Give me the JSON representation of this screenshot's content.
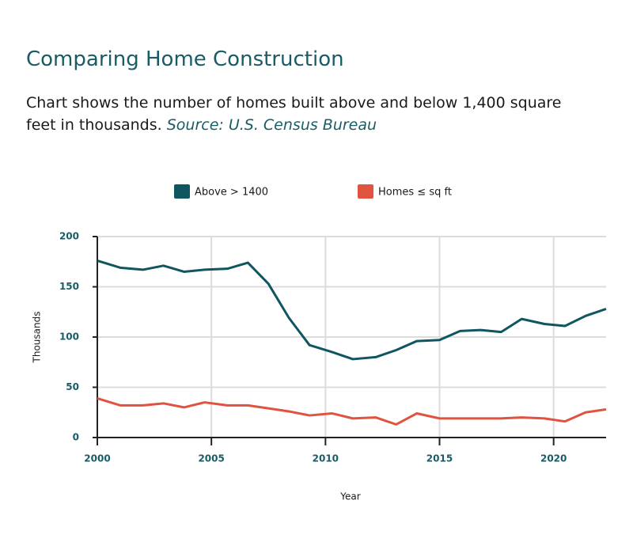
{
  "chart_data": {
    "type": "line",
    "title": "Comparing Home Construction",
    "subtitle": "Chart shows the number of homes built above and below 1,400 square feet in thousands.",
    "source": "Source: U.S. Census Bureau",
    "x_label": "Year",
    "y_label": "Thousands",
    "x": [
      2000.0,
      2001.0,
      2002.0,
      2002.9,
      2003.8,
      2004.7,
      2005.7,
      2006.6,
      2007.5,
      2008.4,
      2009.3,
      2010.3,
      2011.2,
      2012.2,
      2013.1,
      2014.0,
      2015.0,
      2015.9,
      2016.8,
      2017.7,
      2018.6,
      2019.6,
      2020.5,
      2021.4,
      2022.3
    ],
    "series": [
      {
        "name": "Above > 1400",
        "color": "#0f5660",
        "values": [
          176,
          169,
          167,
          171,
          165,
          167,
          168,
          174,
          153,
          119,
          92,
          85,
          78,
          80,
          87,
          96,
          97,
          106,
          107,
          105,
          118,
          113,
          111,
          121,
          128
        ]
      },
      {
        "name": "Homes ≤ sq ft",
        "color": "#e0533f",
        "values": [
          39,
          32,
          32,
          34,
          30,
          35,
          32,
          32,
          29,
          26,
          22,
          24,
          19,
          20,
          13,
          24,
          19,
          19,
          19,
          19,
          20,
          19,
          16,
          25,
          28
        ]
      }
    ],
    "xlim": [
      2000,
      2022.3
    ],
    "ylim": [
      0,
      200
    ],
    "xticks": [
      2000,
      2005,
      2010,
      2015,
      2020
    ],
    "yticks": [
      0,
      50,
      100,
      150,
      200
    ],
    "grid": true
  }
}
